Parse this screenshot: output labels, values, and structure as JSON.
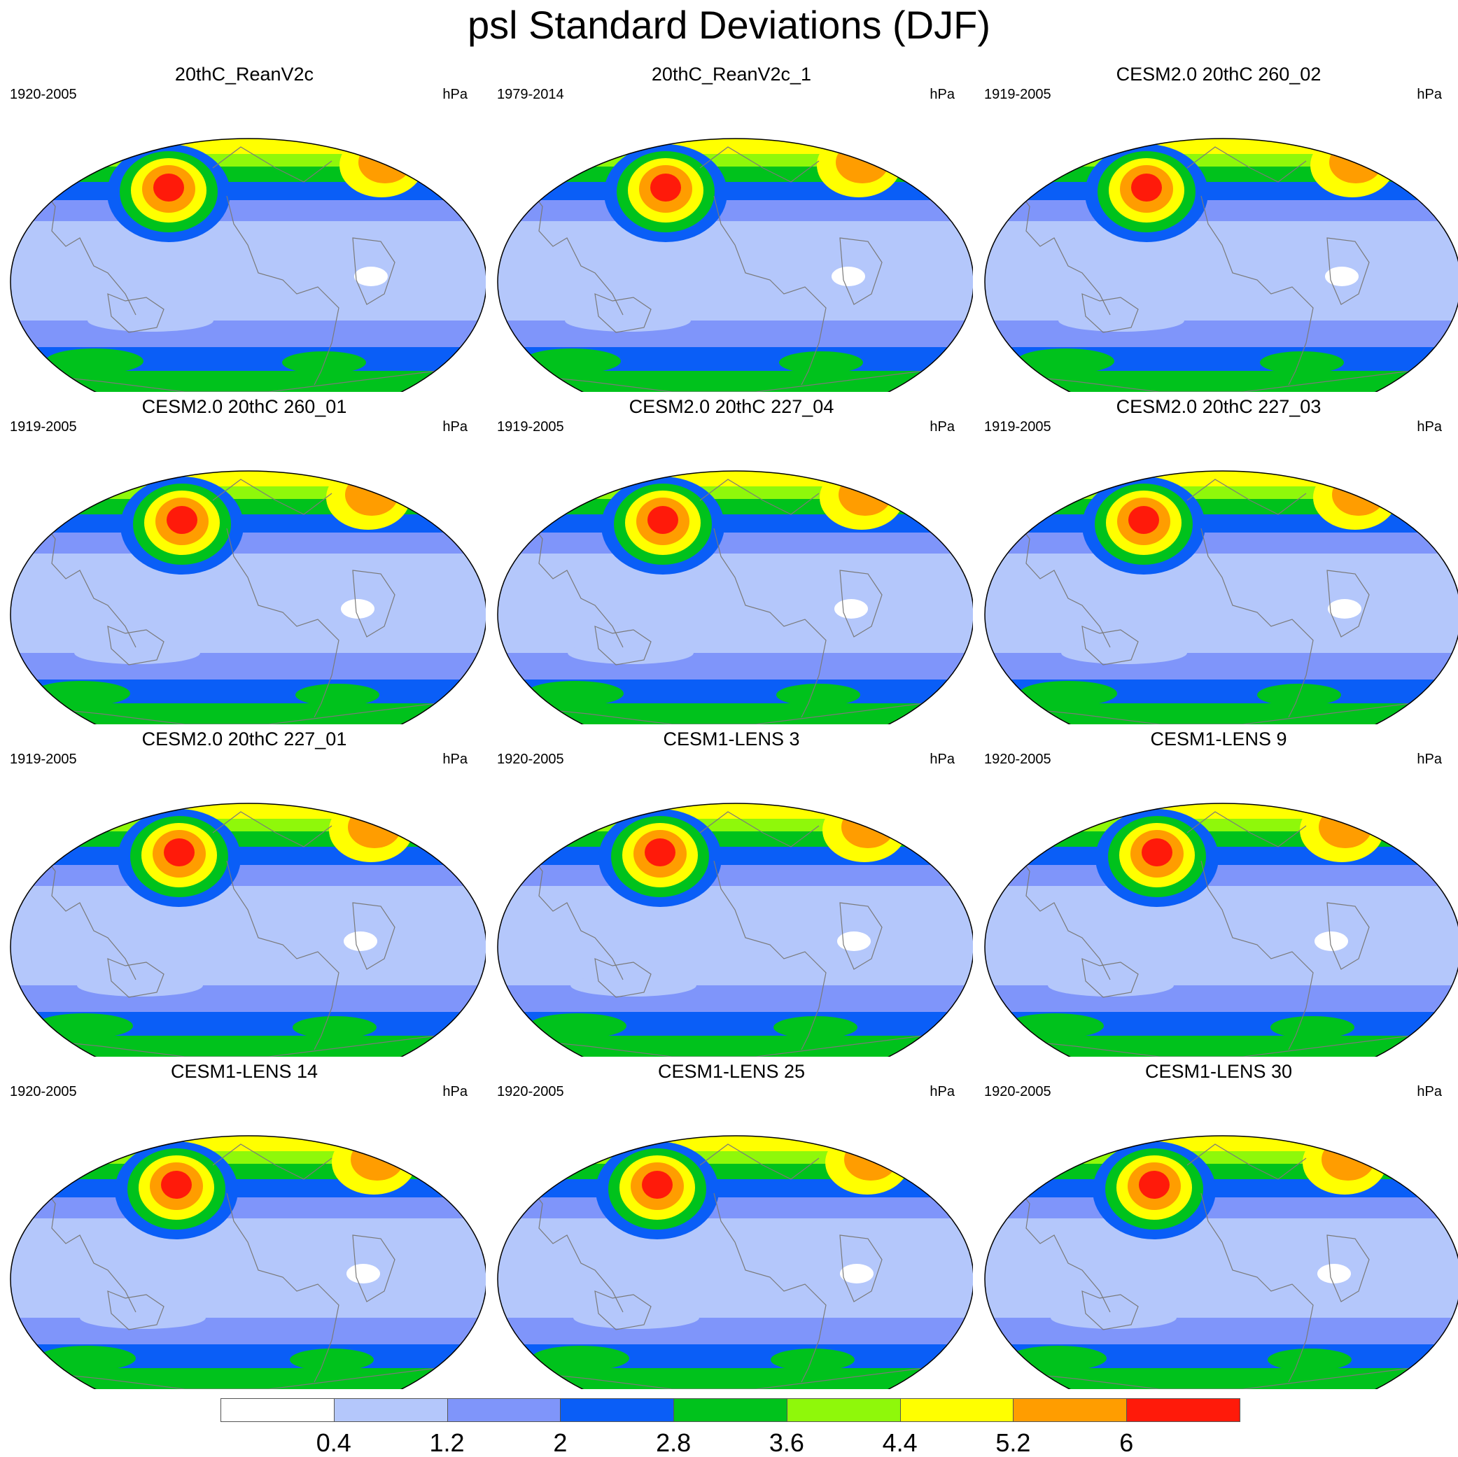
{
  "title": "psl Standard Deviations (DJF)",
  "colorbar": {
    "levels": [
      "0.4",
      "1.2",
      "2",
      "2.8",
      "3.6",
      "4.4",
      "5.2",
      "6"
    ],
    "colors": [
      "#ffffff",
      "#b4c7fb",
      "#7f95fa",
      "#0a5ef7",
      "#00c21c",
      "#8ff80a",
      "#ffff00",
      "#ff9d00",
      "#ff1a0a"
    ]
  },
  "panels": [
    {
      "title": "20thC_ReanV2c",
      "years": "1920-2005",
      "units": "hPa"
    },
    {
      "title": "20thC_ReanV2c_1",
      "years": "1979-2014",
      "units": "hPa"
    },
    {
      "title": "CESM2.0 20thC 260_02",
      "years": "1919-2005",
      "units": "hPa"
    },
    {
      "title": "CESM2.0 20thC 260_01",
      "years": "1919-2005",
      "units": "hPa"
    },
    {
      "title": "CESM2.0 20thC 227_04",
      "years": "1919-2005",
      "units": "hPa"
    },
    {
      "title": "CESM2.0 20thC 227_03",
      "years": "1919-2005",
      "units": "hPa"
    },
    {
      "title": "CESM2.0 20thC 227_01",
      "years": "1919-2005",
      "units": "hPa"
    },
    {
      "title": "CESM1-LENS 3",
      "years": "1920-2005",
      "units": "hPa"
    },
    {
      "title": "CESM1-LENS 9",
      "years": "1920-2005",
      "units": "hPa"
    },
    {
      "title": "CESM1-LENS 14",
      "years": "1920-2005",
      "units": "hPa"
    },
    {
      "title": "CESM1-LENS 25",
      "years": "1920-2005",
      "units": "hPa"
    },
    {
      "title": "CESM1-LENS 30",
      "years": "1920-2005",
      "units": "hPa"
    }
  ]
}
